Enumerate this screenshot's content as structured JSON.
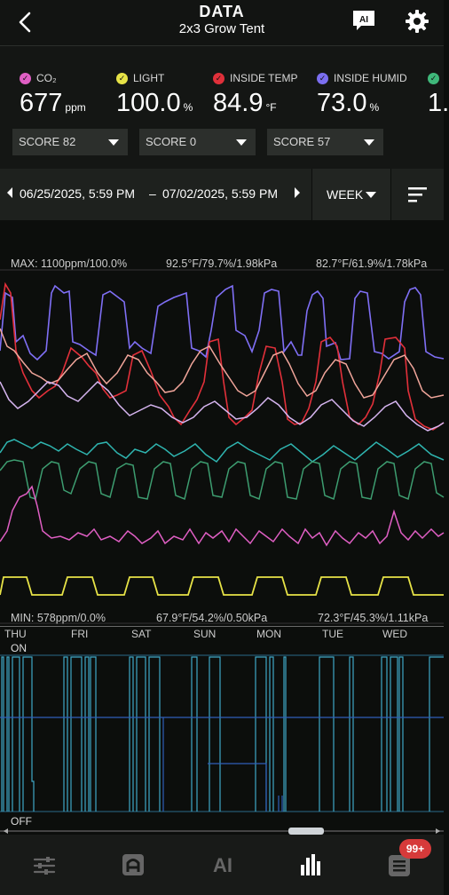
{
  "header": {
    "title": "DATA",
    "subtitle": "2x3 Grow Tent",
    "ai_label": "AI"
  },
  "metrics": [
    {
      "label": "CO₂",
      "value": "677",
      "unit": "ppm",
      "color": "#e05fc4"
    },
    {
      "label": "LIGHT",
      "value": "100.0",
      "unit": "%",
      "color": "#e7e347"
    },
    {
      "label": "INSIDE TEMP",
      "value": "84.9",
      "unit": "°F",
      "color": "#e0303a"
    },
    {
      "label": "INSIDE HUMID",
      "value": "73.0",
      "unit": "%",
      "color": "#7b6ef0"
    },
    {
      "label": "",
      "value": "1.",
      "unit": "",
      "color": "#3fb87a"
    }
  ],
  "scores": [
    "SCORE 82",
    "SCORE 0",
    "SCORE 57"
  ],
  "date_range": {
    "start": "06/25/2025, 5:59 PM",
    "separator": "–",
    "end": "07/02/2025, 5:59 PM",
    "period": "WEEK"
  },
  "chart": {
    "max_left": "MAX: 1100ppm/100.0%",
    "max_mid": "92.5°F/79.7%/1.98kPa",
    "max_right": "82.7°F/61.9%/1.78kPa",
    "min_left": "MIN: 578ppm/0.0%",
    "min_mid": "67.9°F/54.2%/0.50kPa",
    "min_right": "72.3°F/45.3%/1.11kPa",
    "days": [
      "THU",
      "FRI",
      "SAT",
      "SUN",
      "MON",
      "TUE",
      "WED"
    ],
    "on_label": "ON",
    "off_label": "OFF"
  },
  "nav": {
    "items": [
      "controls",
      "device",
      "AI",
      "data",
      "logs"
    ],
    "badge": "99+"
  }
}
